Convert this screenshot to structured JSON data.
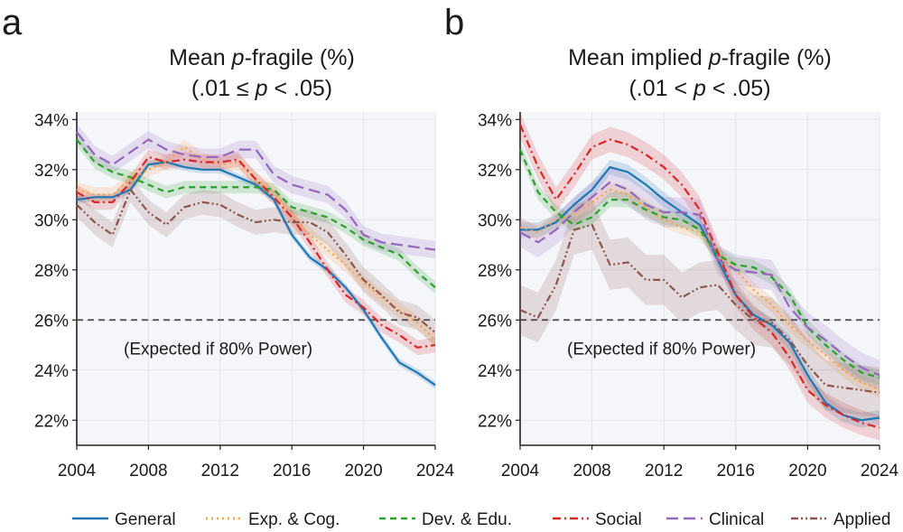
{
  "figure": {
    "legend": [
      {
        "label": "General",
        "color": "#1f77b4",
        "dash": "solid"
      },
      {
        "label": "Exp. & Cog.",
        "color": "#ff9f40",
        "dash": "dotted"
      },
      {
        "label": "Dev. & Edu.",
        "color": "#2ca02c",
        "dash": "dashed"
      },
      {
        "label": "Social",
        "color": "#d62728",
        "dash": "dashdot"
      },
      {
        "label": "Clinical",
        "color": "#9467bd",
        "dash": "longdash"
      },
      {
        "label": "Applied",
        "color": "#8c564b",
        "dash": "dashdotdot"
      }
    ]
  },
  "chart_data": [
    {
      "type": "line",
      "panel_letter": "a",
      "title_line1_pre": "Mean ",
      "title_line1_italic": "p",
      "title_line1_post": "-fragile (%)",
      "title_line2_pre": "(.01 ≤ ",
      "title_line2_italic": "p",
      "title_line2_post": " < .05)",
      "xlim": [
        2004,
        2024
      ],
      "ylim": [
        21,
        34.3
      ],
      "xticks": [
        2004,
        2008,
        2012,
        2016,
        2020,
        2024
      ],
      "yticks": [
        22,
        24,
        26,
        28,
        30,
        32,
        34
      ],
      "ytick_suffix": "%",
      "reference_line": {
        "y": 26,
        "label": "(Expected if 80% Power)"
      },
      "x": [
        2004,
        2005,
        2006,
        2007,
        2008,
        2009,
        2010,
        2011,
        2012,
        2013,
        2014,
        2015,
        2016,
        2017,
        2018,
        2019,
        2020,
        2021,
        2022,
        2023,
        2024
      ],
      "series": [
        {
          "name": "General",
          "band": 0.15,
          "values": [
            30.8,
            30.9,
            30.9,
            31.2,
            32.2,
            32.3,
            32.1,
            32.0,
            32.0,
            31.7,
            31.4,
            30.8,
            29.4,
            28.5,
            28.0,
            27.3,
            26.4,
            25.3,
            24.3,
            23.9,
            23.4
          ]
        },
        {
          "name": "Exp. & Cog.",
          "band": 0.3,
          "values": [
            31.2,
            31.0,
            31.0,
            31.6,
            32.0,
            32.3,
            32.9,
            32.4,
            32.2,
            32.3,
            31.6,
            31.1,
            30.2,
            29.4,
            28.8,
            28.2,
            27.5,
            26.9,
            26.4,
            25.9,
            25.2
          ]
        },
        {
          "name": "Dev. & Edu.",
          "band": 0.25,
          "values": [
            33.2,
            32.3,
            31.9,
            31.7,
            31.4,
            31.1,
            31.3,
            31.3,
            31.3,
            31.3,
            31.3,
            31.2,
            30.5,
            30.3,
            30.1,
            29.7,
            29.2,
            28.9,
            28.6,
            27.9,
            27.3
          ]
        },
        {
          "name": "Social",
          "band": 0.3,
          "values": [
            31.1,
            30.7,
            30.7,
            31.5,
            32.5,
            32.3,
            32.4,
            32.3,
            32.3,
            32.4,
            31.6,
            30.9,
            30.1,
            29.1,
            28.0,
            27.0,
            26.5,
            25.8,
            25.4,
            24.9,
            25.0
          ]
        },
        {
          "name": "Clinical",
          "band": 0.35,
          "values": [
            33.5,
            32.6,
            32.2,
            32.7,
            33.2,
            32.8,
            32.6,
            32.5,
            32.5,
            32.8,
            32.8,
            31.8,
            31.4,
            31.2,
            31.0,
            30.4,
            29.4,
            29.1,
            29.0,
            28.9,
            28.8
          ]
        },
        {
          "name": "Applied",
          "band": 0.5,
          "values": [
            30.6,
            29.9,
            29.4,
            31.2,
            30.3,
            29.8,
            30.5,
            30.7,
            30.6,
            30.2,
            29.9,
            30.0,
            29.9,
            29.9,
            29.5,
            28.6,
            27.6,
            27.0,
            26.3,
            26.1,
            25.5
          ]
        }
      ]
    },
    {
      "type": "line",
      "panel_letter": "b",
      "title_line1_pre": "Mean implied ",
      "title_line1_italic": "p",
      "title_line1_post": "-fragile (%)",
      "title_line2_pre": "(.01 < ",
      "title_line2_italic": "p",
      "title_line2_post": " < .05)",
      "xlim": [
        2004,
        2024
      ],
      "ylim": [
        21,
        34.3
      ],
      "xticks": [
        2004,
        2008,
        2012,
        2016,
        2020,
        2024
      ],
      "yticks": [
        22,
        24,
        26,
        28,
        30,
        32,
        34
      ],
      "ytick_suffix": "%",
      "reference_line": {
        "y": 26,
        "label": "(Expected if 80% Power)"
      },
      "x": [
        2004,
        2005,
        2006,
        2007,
        2008,
        2009,
        2010,
        2011,
        2012,
        2013,
        2014,
        2015,
        2016,
        2017,
        2018,
        2019,
        2020,
        2021,
        2022,
        2023,
        2024
      ],
      "series": [
        {
          "name": "General",
          "band": 0.3,
          "values": [
            29.6,
            29.6,
            29.9,
            30.6,
            31.2,
            32.1,
            31.9,
            31.4,
            30.8,
            30.3,
            29.8,
            28.4,
            27.0,
            26.2,
            25.8,
            25.1,
            23.8,
            22.7,
            22.2,
            22.0,
            22.1
          ]
        },
        {
          "name": "Exp. & Cog.",
          "band": 0.3,
          "values": [
            29.7,
            29.5,
            30.0,
            30.2,
            30.7,
            31.2,
            31.0,
            30.5,
            30.0,
            29.7,
            29.5,
            28.6,
            28.0,
            27.2,
            26.6,
            25.8,
            25.2,
            24.6,
            24.0,
            23.5,
            23.2
          ]
        },
        {
          "name": "Dev. & Edu.",
          "band": 0.3,
          "values": [
            32.8,
            31.1,
            30.3,
            29.8,
            30.1,
            30.8,
            30.8,
            30.4,
            30.1,
            30.0,
            29.6,
            28.6,
            28.2,
            28.1,
            27.7,
            27.0,
            25.7,
            25.0,
            24.4,
            23.9,
            23.7
          ]
        },
        {
          "name": "Social",
          "band": 0.5,
          "values": [
            33.8,
            32.1,
            30.8,
            31.8,
            32.9,
            33.2,
            33.0,
            32.6,
            32.1,
            31.4,
            30.4,
            28.7,
            27.0,
            26.1,
            25.5,
            24.5,
            23.2,
            22.6,
            22.2,
            21.9,
            21.7
          ]
        },
        {
          "name": "Clinical",
          "band": 0.6,
          "values": [
            29.5,
            29.1,
            29.6,
            30.3,
            30.9,
            31.5,
            31.2,
            30.6,
            30.3,
            30.3,
            30.2,
            28.4,
            28.0,
            27.9,
            27.8,
            26.5,
            25.7,
            25.2,
            24.6,
            24.1,
            23.8
          ]
        },
        {
          "name": "Applied",
          "band": 1.0,
          "values": [
            26.4,
            26.1,
            27.4,
            29.6,
            29.8,
            28.2,
            28.3,
            27.6,
            27.6,
            26.9,
            27.3,
            27.4,
            26.6,
            26.0,
            25.9,
            25.2,
            24.2,
            23.4,
            23.3,
            23.2,
            23.1
          ]
        }
      ]
    }
  ]
}
